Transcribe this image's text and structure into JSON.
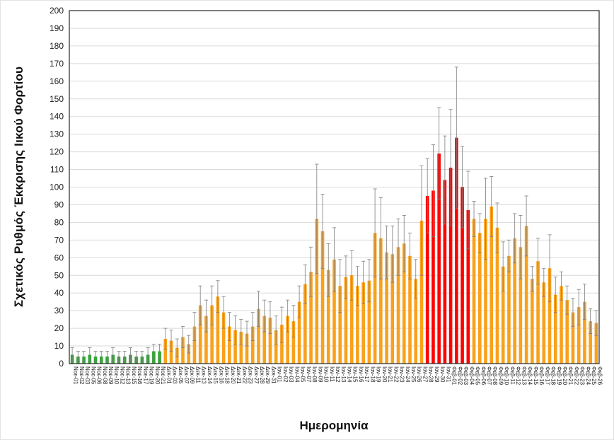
{
  "chart_data": {
    "type": "bar",
    "title": "",
    "xlabel": "Ημερομηνία",
    "ylabel": "Σχετικός Ρυθμός Έκκρισης Ιικού Φορτίου",
    "ylim": [
      0,
      200
    ],
    "ytick_step": 10,
    "grid": true,
    "legend_position": "none",
    "error_bars": "symmetric",
    "colors": {
      "baseline": "#34a336",
      "normal": "#f9a11b",
      "alert": "#fe0000",
      "error": "#7f7f7f",
      "gridline": "#d9d9d9",
      "axis": "#262626"
    },
    "bars": [
      {
        "label": "Νοε-01",
        "value": 5,
        "error": 4,
        "group": "baseline"
      },
      {
        "label": "Νοε-02",
        "value": 4,
        "error": 3,
        "group": "baseline"
      },
      {
        "label": "Νοε-03",
        "value": 4,
        "error": 3,
        "group": "baseline"
      },
      {
        "label": "Νοε-05",
        "value": 5,
        "error": 4,
        "group": "baseline"
      },
      {
        "label": "Νοε-06",
        "value": 4,
        "error": 3,
        "group": "baseline"
      },
      {
        "label": "Νοε-08",
        "value": 4,
        "error": 3,
        "group": "baseline"
      },
      {
        "label": "Νοε-09",
        "value": 4,
        "error": 3,
        "group": "baseline"
      },
      {
        "label": "Νοε-10",
        "value": 5,
        "error": 4,
        "group": "baseline"
      },
      {
        "label": "Νοε-12",
        "value": 4,
        "error": 3,
        "group": "baseline"
      },
      {
        "label": "Νοε-13",
        "value": 4,
        "error": 3,
        "group": "baseline"
      },
      {
        "label": "Νοε-15",
        "value": 5,
        "error": 4,
        "group": "baseline"
      },
      {
        "label": "Νοε-16",
        "value": 4,
        "error": 3,
        "group": "baseline"
      },
      {
        "label": "Νοε-17",
        "value": 4,
        "error": 3,
        "group": "baseline"
      },
      {
        "label": "Νοε-19",
        "value": 5,
        "error": 4,
        "group": "baseline"
      },
      {
        "label": "Νοε-20",
        "value": 7,
        "error": 4,
        "group": "baseline"
      },
      {
        "label": "Νοε-21",
        "value": 7,
        "error": 4,
        "group": "baseline"
      },
      {
        "label": "Δεκ-01",
        "value": 14,
        "error": 6,
        "group": "normal"
      },
      {
        "label": "Δεκ-03",
        "value": 13,
        "error": 6,
        "group": "normal"
      },
      {
        "label": "Δεκ-05",
        "value": 9,
        "error": 5,
        "group": "normal"
      },
      {
        "label": "Δεκ-07",
        "value": 15,
        "error": 6,
        "group": "normal"
      },
      {
        "label": "Δεκ-09",
        "value": 11,
        "error": 5,
        "group": "normal"
      },
      {
        "label": "Δεκ-11",
        "value": 21,
        "error": 8,
        "group": "normal"
      },
      {
        "label": "Δεκ-13",
        "value": 33,
        "error": 11,
        "group": "normal"
      },
      {
        "label": "Δεκ-14",
        "value": 27,
        "error": 9,
        "group": "normal"
      },
      {
        "label": "Δεκ-15",
        "value": 33,
        "error": 11,
        "group": "normal"
      },
      {
        "label": "Δεκ-16",
        "value": 38,
        "error": 9,
        "group": "normal"
      },
      {
        "label": "Δεκ-18",
        "value": 29,
        "error": 9,
        "group": "normal"
      },
      {
        "label": "Δεκ-20",
        "value": 21,
        "error": 8,
        "group": "normal"
      },
      {
        "label": "Δεκ-21",
        "value": 19,
        "error": 8,
        "group": "normal"
      },
      {
        "label": "Δεκ-22",
        "value": 18,
        "error": 7,
        "group": "normal"
      },
      {
        "label": "Δεκ-23",
        "value": 17,
        "error": 7,
        "group": "normal"
      },
      {
        "label": "Δεκ-27",
        "value": 21,
        "error": 8,
        "group": "normal"
      },
      {
        "label": "Δεκ-28",
        "value": 31,
        "error": 10,
        "group": "normal"
      },
      {
        "label": "Δεκ-29",
        "value": 27,
        "error": 9,
        "group": "normal"
      },
      {
        "label": "Δεκ-31",
        "value": 26,
        "error": 9,
        "group": "normal"
      },
      {
        "label": "Ιαν-01",
        "value": 19,
        "error": 8,
        "group": "normal"
      },
      {
        "label": "Ιαν-02",
        "value": 22,
        "error": 10,
        "group": "normal"
      },
      {
        "label": "Ιαν-03",
        "value": 27,
        "error": 9,
        "group": "normal"
      },
      {
        "label": "Ιαν-04",
        "value": 24,
        "error": 9,
        "group": "normal"
      },
      {
        "label": "Ιαν-05",
        "value": 35,
        "error": 9,
        "group": "normal"
      },
      {
        "label": "Ιαν-07",
        "value": 45,
        "error": 11,
        "group": "normal"
      },
      {
        "label": "Ιαν-08",
        "value": 52,
        "error": 14,
        "group": "normal"
      },
      {
        "label": "Ιαν-09",
        "value": 82,
        "error": 31,
        "group": "normal"
      },
      {
        "label": "Ιαν-10",
        "value": 75,
        "error": 21,
        "group": "normal"
      },
      {
        "label": "Ιαν-11",
        "value": 53,
        "error": 15,
        "group": "normal"
      },
      {
        "label": "Ιαν-12",
        "value": 59,
        "error": 18,
        "group": "normal"
      },
      {
        "label": "Ιαν-13",
        "value": 44,
        "error": 15,
        "group": "normal"
      },
      {
        "label": "Ιαν-14",
        "value": 49,
        "error": 12,
        "group": "normal"
      },
      {
        "label": "Ιαν-15",
        "value": 50,
        "error": 14,
        "group": "normal"
      },
      {
        "label": "Ιαν-16",
        "value": 44,
        "error": 11,
        "group": "normal"
      },
      {
        "label": "Ιαν-17",
        "value": 46,
        "error": 12,
        "group": "normal"
      },
      {
        "label": "Ιαν-18",
        "value": 47,
        "error": 12,
        "group": "normal"
      },
      {
        "label": "Ιαν-19",
        "value": 74,
        "error": 25,
        "group": "normal"
      },
      {
        "label": "Ιαν-20",
        "value": 71,
        "error": 23,
        "group": "normal"
      },
      {
        "label": "Ιαν-21",
        "value": 63,
        "error": 15,
        "group": "normal"
      },
      {
        "label": "Ιαν-22",
        "value": 62,
        "error": 16,
        "group": "normal"
      },
      {
        "label": "Ιαν-23",
        "value": 66,
        "error": 16,
        "group": "normal"
      },
      {
        "label": "Ιαν-24",
        "value": 68,
        "error": 16,
        "group": "normal"
      },
      {
        "label": "Ιαν-25",
        "value": 61,
        "error": 13,
        "group": "normal"
      },
      {
        "label": "Ιαν-26",
        "value": 48,
        "error": 11,
        "group": "normal"
      },
      {
        "label": "Ιαν-27",
        "value": 81,
        "error": 31,
        "group": "normal"
      },
      {
        "label": "Ιαν-28",
        "value": 95,
        "error": 21,
        "group": "alert"
      },
      {
        "label": "Ιαν-29",
        "value": 98,
        "error": 26,
        "group": "alert"
      },
      {
        "label": "Ιαν-30",
        "value": 119,
        "error": 26,
        "group": "alert"
      },
      {
        "label": "Ιαν-31",
        "value": 104,
        "error": 25,
        "group": "alert"
      },
      {
        "label": "Φεβ-01",
        "value": 111,
        "error": 33,
        "group": "alert"
      },
      {
        "label": "Φεβ-02",
        "value": 128,
        "error": 40,
        "group": "alert"
      },
      {
        "label": "Φεβ-03",
        "value": 100,
        "error": 23,
        "group": "alert"
      },
      {
        "label": "Φεβ-04",
        "value": 87,
        "error": 22,
        "group": "alert"
      },
      {
        "label": "Φεβ-05",
        "value": 82,
        "error": 10,
        "group": "normal"
      },
      {
        "label": "Φεβ-06",
        "value": 74,
        "error": 11,
        "group": "normal"
      },
      {
        "label": "Φεβ-07",
        "value": 82,
        "error": 23,
        "group": "normal"
      },
      {
        "label": "Φεβ-08",
        "value": 89,
        "error": 17,
        "group": "normal"
      },
      {
        "label": "Φεβ-09",
        "value": 77,
        "error": 14,
        "group": "normal"
      },
      {
        "label": "Φεβ-10",
        "value": 55,
        "error": 14,
        "group": "normal"
      },
      {
        "label": "Φεβ-11",
        "value": 61,
        "error": 9,
        "group": "normal"
      },
      {
        "label": "Φεβ-12",
        "value": 71,
        "error": 14,
        "group": "normal"
      },
      {
        "label": "Φεβ-13",
        "value": 66,
        "error": 18,
        "group": "normal"
      },
      {
        "label": "Φεβ-14",
        "value": 78,
        "error": 17,
        "group": "normal"
      },
      {
        "label": "Φεβ-15",
        "value": 48,
        "error": 7,
        "group": "normal"
      },
      {
        "label": "Φεβ-16",
        "value": 58,
        "error": 13,
        "group": "normal"
      },
      {
        "label": "Φεβ-17",
        "value": 46,
        "error": 8,
        "group": "normal"
      },
      {
        "label": "Φεβ-18",
        "value": 54,
        "error": 19,
        "group": "normal"
      },
      {
        "label": "Φεβ-19",
        "value": 39,
        "error": 10,
        "group": "normal"
      },
      {
        "label": "Φεβ-20",
        "value": 44,
        "error": 8,
        "group": "normal"
      },
      {
        "label": "Φεβ-21",
        "value": 36,
        "error": 8,
        "group": "normal"
      },
      {
        "label": "Φεβ-22",
        "value": 29,
        "error": 8,
        "group": "normal"
      },
      {
        "label": "Φεβ-23",
        "value": 32,
        "error": 10,
        "group": "normal"
      },
      {
        "label": "Φεβ-24",
        "value": 35,
        "error": 10,
        "group": "normal"
      },
      {
        "label": "Φεβ-25",
        "value": 24,
        "error": 7,
        "group": "normal"
      },
      {
        "label": "Φεβ-26",
        "value": 23,
        "error": 7,
        "group": "normal"
      }
    ]
  }
}
